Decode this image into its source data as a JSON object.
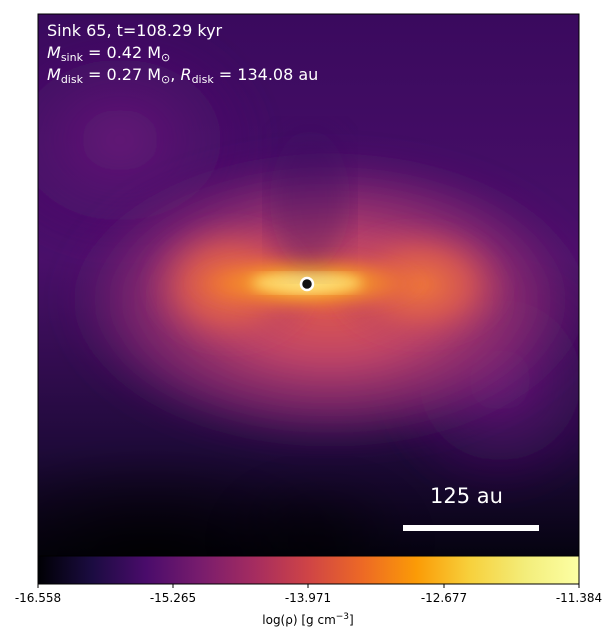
{
  "annotation": {
    "line1": "Sink 65, t=108.29 kyr",
    "line2_symbol": "M",
    "line2_sub": "sink",
    "line2_value": " = 0.42 M",
    "line2_unit_sub": "⊙",
    "line3_symbol": "M",
    "line3_sub": "disk",
    "line3_value": " = 0.27 M",
    "line3_unit_sub": "⊙",
    "line3_sep": ", ",
    "line3_r_symbol": "R",
    "line3_r_sub": "disk",
    "line3_r_value": " = 134.08 au"
  },
  "scale_bar": {
    "label": "125 au"
  },
  "colorbar": {
    "colormap": "inferno",
    "ticks": [
      "-16.558",
      "-15.265",
      "-13.971",
      "-12.677",
      "-11.384"
    ],
    "label_prefix": "log(ρ) [g cm",
    "label_exp": "−3",
    "label_suffix": "]",
    "range": [
      -16.558,
      -11.384
    ]
  },
  "colors": {
    "background_top": "#3a0a5e",
    "background_bottom": "#050310",
    "disk_hot": "#fcd35a",
    "envelope": "#b83a6a",
    "sink_ring": "#ffffff"
  },
  "icons": {
    "sink": "sink-marker-icon"
  }
}
